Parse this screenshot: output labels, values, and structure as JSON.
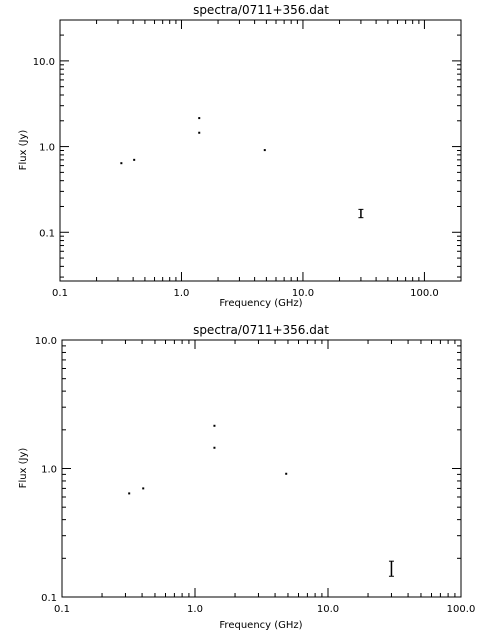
{
  "chart_data": [
    {
      "type": "scatter",
      "title": "spectra/0711+356.dat",
      "xlabel": "Frequency (GHz)",
      "ylabel": "Flux (Jy)",
      "xscale": "log",
      "yscale": "log",
      "xlim": [
        0.1,
        200
      ],
      "ylim": [
        0.027,
        30
      ],
      "xticks": [
        {
          "value": 0.1,
          "label": "0.1"
        },
        {
          "value": 1,
          "label": "1.0"
        },
        {
          "value": 10,
          "label": "10.0"
        },
        {
          "value": 100,
          "label": "100.0"
        }
      ],
      "yticks": [
        {
          "value": 0.1,
          "label": "0.1"
        },
        {
          "value": 1,
          "label": "1.0"
        },
        {
          "value": 10,
          "label": "10.0"
        }
      ],
      "points": [
        {
          "x": 0.32,
          "y": 0.64
        },
        {
          "x": 0.408,
          "y": 0.7
        },
        {
          "x": 1.4,
          "y": 2.15
        },
        {
          "x": 1.4,
          "y": 1.45
        },
        {
          "x": 4.85,
          "y": 0.91
        }
      ],
      "errorbars": [
        {
          "x": 30,
          "y": 0.165,
          "low": 0.148,
          "high": 0.185
        }
      ],
      "grid": false,
      "legend": "none"
    },
    {
      "type": "scatter",
      "title": "spectra/0711+356.dat",
      "xlabel": "Frequency (GHz)",
      "ylabel": "Flux (Jy)",
      "xscale": "log",
      "yscale": "log",
      "xlim": [
        0.1,
        100
      ],
      "ylim": [
        0.1,
        10
      ],
      "xticks": [
        {
          "value": 0.1,
          "label": "0.1"
        },
        {
          "value": 1,
          "label": "1.0"
        },
        {
          "value": 10,
          "label": "10.0"
        },
        {
          "value": 100,
          "label": "100.0"
        }
      ],
      "yticks": [
        {
          "value": 0.1,
          "label": "0.1"
        },
        {
          "value": 1,
          "label": "1.0"
        },
        {
          "value": 10,
          "label": "10.0"
        }
      ],
      "points": [
        {
          "x": 0.32,
          "y": 0.64
        },
        {
          "x": 0.408,
          "y": 0.7
        },
        {
          "x": 1.4,
          "y": 2.15
        },
        {
          "x": 1.4,
          "y": 1.45
        },
        {
          "x": 4.85,
          "y": 0.91
        }
      ],
      "errorbars": [
        {
          "x": 30,
          "y": 0.165,
          "low": 0.145,
          "high": 0.19
        }
      ],
      "grid": false,
      "legend": "none"
    }
  ]
}
